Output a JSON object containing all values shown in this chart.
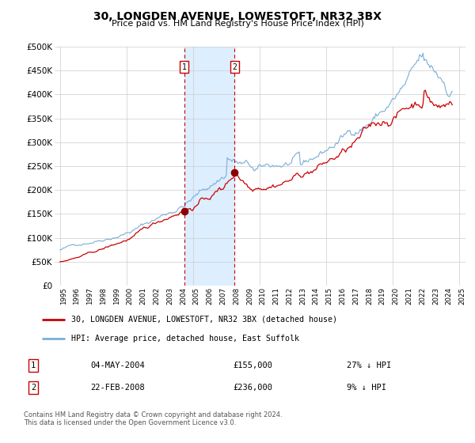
{
  "title": "30, LONGDEN AVENUE, LOWESTOFT, NR32 3BX",
  "subtitle": "Price paid vs. HM Land Registry's House Price Index (HPI)",
  "legend_line1": "30, LONGDEN AVENUE, LOWESTOFT, NR32 3BX (detached house)",
  "legend_line2": "HPI: Average price, detached house, East Suffolk",
  "footnote": "Contains HM Land Registry data © Crown copyright and database right 2024.\nThis data is licensed under the Open Government Licence v3.0.",
  "table": [
    {
      "num": "1",
      "date": "04-MAY-2004",
      "price": "£155,000",
      "hpi": "27% ↓ HPI"
    },
    {
      "num": "2",
      "date": "22-FEB-2008",
      "price": "£236,000",
      "hpi": "9% ↓ HPI"
    }
  ],
  "vline1_x": 2004.34,
  "vline2_x": 2008.13,
  "point1": [
    2004.34,
    155000
  ],
  "point2": [
    2008.13,
    236000
  ],
  "hpi_color": "#7aaed6",
  "price_color": "#cc0000",
  "point_color": "#8b0000",
  "vline_color": "#cc0000",
  "shade_color": "#ddeeff",
  "grid_color": "#cccccc",
  "bg_color": "#ffffff",
  "ylim": [
    0,
    500000
  ],
  "yticks": [
    0,
    50000,
    100000,
    150000,
    200000,
    250000,
    300000,
    350000,
    400000,
    450000,
    500000
  ],
  "xlim": [
    1994.6,
    2025.5
  ]
}
